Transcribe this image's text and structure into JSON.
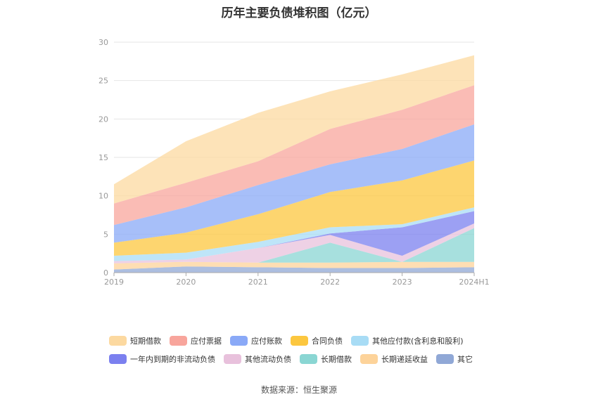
{
  "chart_data": {
    "type": "area",
    "title": "历年主要负债堆积图（亿元）",
    "categories": [
      "2019",
      "2020",
      "2021",
      "2022",
      "2023",
      "2024H1"
    ],
    "ylim": [
      0,
      30
    ],
    "yticks": [
      "0",
      "5",
      "10",
      "15",
      "20",
      "25",
      "30"
    ],
    "grid": true,
    "legend_position": "bottom",
    "stack_order_bottom_to_top": [
      "其它",
      "长期递延收益",
      "长期借款",
      "其他流动负债",
      "一年内到期的非流动负债",
      "其他应付款(含利息和股利)",
      "合同负债",
      "应付账款",
      "应付票据",
      "短期借款"
    ],
    "series": [
      {
        "name": "短期借款",
        "color": "#fcd9a0",
        "values": [
          2.5,
          5.4,
          6.3,
          4.9,
          4.6,
          3.9
        ]
      },
      {
        "name": "应付票据",
        "color": "#f8a59c",
        "values": [
          2.8,
          3.2,
          3.1,
          4.6,
          5.1,
          5.1
        ]
      },
      {
        "name": "应付账款",
        "color": "#8aa9f7",
        "values": [
          2.3,
          3.3,
          3.8,
          3.6,
          4.1,
          4.7
        ]
      },
      {
        "name": "合同负债",
        "color": "#fcc73f",
        "values": [
          1.7,
          2.6,
          3.6,
          4.6,
          5.7,
          6.1
        ]
      },
      {
        "name": "其他应付款(含利息和股利)",
        "color": "#a8dcf5",
        "values": [
          0.7,
          0.9,
          0.8,
          0.8,
          0.4,
          0.5
        ]
      },
      {
        "name": "一年内到期的非流动负债",
        "color": "#7b80ef",
        "values": [
          0.0,
          0.0,
          0.0,
          0.2,
          3.7,
          1.6
        ]
      },
      {
        "name": "其他流动负债",
        "color": "#e8c1dc",
        "values": [
          0.3,
          0.3,
          1.9,
          1.0,
          0.8,
          0.6
        ]
      },
      {
        "name": "长期借款",
        "color": "#8ad6d3",
        "values": [
          0.0,
          0.0,
          0.0,
          2.6,
          0.0,
          4.4
        ]
      },
      {
        "name": "长期递延收益",
        "color": "#fdd39a",
        "values": [
          0.8,
          0.6,
          0.6,
          0.7,
          0.8,
          0.7
        ]
      },
      {
        "name": "其它",
        "color": "#90a8d6",
        "values": [
          0.4,
          0.8,
          0.7,
          0.6,
          0.6,
          0.7
        ]
      }
    ],
    "source": "数据来源：恒生聚源"
  }
}
